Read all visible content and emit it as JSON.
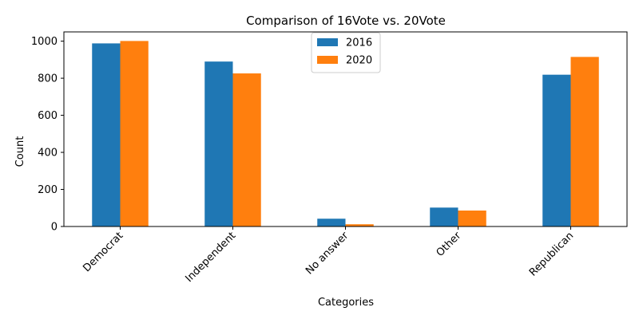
{
  "chart_data": {
    "type": "bar",
    "title": "Comparison of 16Vote vs. 20Vote",
    "xlabel": "Categories",
    "ylabel": "Count",
    "categories": [
      "Democrat",
      "Independent",
      "No answer",
      "Other",
      "Republican"
    ],
    "series": [
      {
        "name": "2016",
        "color": "#1f77b4",
        "values": [
          988,
          890,
          42,
          102,
          819
        ]
      },
      {
        "name": "2020",
        "color": "#ff7f0e",
        "values": [
          1001,
          826,
          12,
          86,
          915
        ]
      }
    ],
    "ylim": [
      0,
      1050
    ],
    "yticks": [
      0,
      200,
      400,
      600,
      800,
      1000
    ],
    "grid": false,
    "legend_position": "top-center",
    "xtick_rotation": 45
  }
}
